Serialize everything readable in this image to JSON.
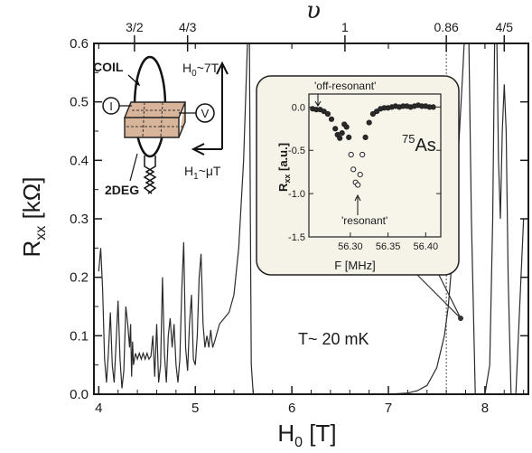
{
  "chart_data": {
    "type": "line",
    "xlabel": "H",
    "xlabel_sub": "0",
    "xlabel_unit": " [T]",
    "ylabel": "R",
    "ylabel_sub": "xx",
    "ylabel_unit": " [kΩ]",
    "xlim": [
      3.95,
      8.45
    ],
    "ylim": [
      0,
      0.6
    ],
    "x_ticks": [
      "4",
      "5",
      "6",
      "7",
      "8"
    ],
    "y_ticks": [
      "0.0",
      "0.1",
      "0.2",
      "0.3",
      "0.4",
      "0.5",
      "0.6"
    ],
    "top_axis": {
      "label": "υ",
      "ticks": [
        {
          "label": "3/2",
          "x": 4.37
        },
        {
          "label": "4/3",
          "x": 4.92
        },
        {
          "label": "1",
          "x": 6.55
        },
        {
          "label": "0.86",
          "x": 7.6
        },
        {
          "label": "4/5",
          "x": 8.2
        }
      ]
    },
    "series": [
      {
        "values": [
          [
            4.0,
            0.21
          ],
          [
            4.02,
            0.25
          ],
          [
            4.04,
            0.18
          ],
          [
            4.06,
            0.06
          ],
          [
            4.08,
            0.02
          ],
          [
            4.1,
            0.07
          ],
          [
            4.12,
            0.14
          ],
          [
            4.14,
            0.05
          ],
          [
            4.16,
            0.02
          ],
          [
            4.18,
            0.09
          ],
          [
            4.2,
            0.16
          ],
          [
            4.22,
            0.06
          ],
          [
            4.24,
            0.01
          ],
          [
            4.26,
            0.04
          ],
          [
            4.28,
            0.15
          ],
          [
            4.3,
            0.12
          ],
          [
            4.32,
            0.08
          ],
          [
            4.33,
            0.12
          ],
          [
            4.34,
            0.03
          ],
          [
            4.35,
            0.09
          ],
          [
            4.36,
            0.05
          ],
          [
            4.38,
            0.07
          ],
          [
            4.4,
            0.06
          ],
          [
            4.42,
            0.07
          ],
          [
            4.44,
            0.06
          ],
          [
            4.46,
            0.07
          ],
          [
            4.48,
            0.06
          ],
          [
            4.5,
            0.07
          ],
          [
            4.52,
            0.06
          ],
          [
            4.54,
            0.065
          ],
          [
            4.56,
            0.1
          ],
          [
            4.58,
            0.03
          ],
          [
            4.6,
            0.12
          ],
          [
            4.62,
            0.02
          ],
          [
            4.64,
            0.05
          ],
          [
            4.66,
            0.2
          ],
          [
            4.68,
            0.07
          ],
          [
            4.7,
            0.02
          ],
          [
            4.72,
            0.1
          ],
          [
            4.74,
            0.13
          ],
          [
            4.76,
            0.08
          ],
          [
            4.78,
            0.12
          ],
          [
            4.8,
            0.05
          ],
          [
            4.82,
            0.02
          ],
          [
            4.84,
            0.06
          ],
          [
            4.86,
            0.18
          ],
          [
            4.88,
            0.26
          ],
          [
            4.9,
            0.08
          ],
          [
            4.92,
            0.04
          ],
          [
            4.94,
            0.12
          ],
          [
            4.96,
            0.17
          ],
          [
            4.98,
            0.06
          ],
          [
            5.0,
            0.05
          ],
          [
            5.02,
            0.1
          ],
          [
            5.04,
            0.2
          ],
          [
            5.06,
            0.24
          ],
          [
            5.08,
            0.12
          ],
          [
            5.1,
            0.08
          ],
          [
            5.12,
            0.1
          ],
          [
            5.14,
            0.08
          ],
          [
            5.16,
            0.11
          ],
          [
            5.18,
            0.08
          ],
          [
            5.2,
            0.09
          ],
          [
            5.25,
            0.12
          ],
          [
            5.3,
            0.13
          ],
          [
            5.35,
            0.14
          ],
          [
            5.4,
            0.17
          ],
          [
            5.45,
            0.25
          ],
          [
            5.5,
            0.4
          ],
          [
            5.53,
            0.55
          ],
          [
            5.55,
            0.65
          ],
          [
            5.56,
            0.62
          ],
          [
            5.57,
            0.3
          ],
          [
            5.58,
            0.05
          ],
          [
            5.6,
            0.0
          ],
          [
            6.0,
            0.0
          ],
          [
            6.5,
            0.0
          ],
          [
            7.0,
            0.0
          ],
          [
            7.2,
            0.002
          ],
          [
            7.3,
            0.006
          ],
          [
            7.4,
            0.015
          ],
          [
            7.5,
            0.045
          ],
          [
            7.58,
            0.1
          ],
          [
            7.62,
            0.15
          ],
          [
            7.67,
            0.25
          ],
          [
            7.72,
            0.4
          ],
          [
            7.77,
            0.55
          ],
          [
            7.8,
            0.65
          ],
          [
            7.83,
            0.65
          ],
          [
            7.86,
            0.3
          ],
          [
            7.9,
            0.0
          ],
          [
            8.0,
            0.0
          ],
          [
            8.05,
            0.05
          ],
          [
            8.08,
            0.3
          ],
          [
            8.1,
            0.6
          ],
          [
            8.12,
            0.65
          ],
          [
            8.14,
            0.4
          ],
          [
            8.16,
            0.3
          ],
          [
            8.18,
            0.45
          ],
          [
            8.2,
            0.53
          ],
          [
            8.22,
            0.45
          ],
          [
            8.24,
            0.2
          ],
          [
            8.27,
            0.0
          ],
          [
            8.32,
            0.0
          ],
          [
            8.36,
            0.15
          ],
          [
            8.4,
            0.3
          ]
        ]
      }
    ],
    "annotations": {
      "temperature": "T~ 20 mK",
      "coil": "COIL",
      "two_deg": "2DEG",
      "current": "I",
      "voltage": "V",
      "h0": "H",
      "h0_sub": "0",
      "h0_value": "~7T",
      "h1": "H",
      "h1_sub": "1",
      "h1_value": "~μT"
    },
    "inset": {
      "type": "scatter",
      "xlabel": "F [MHz]",
      "ylabel": "R",
      "ylabel_sub": "xx",
      "ylabel_unit": " [a.u.]",
      "xlim": [
        56.245,
        56.42
      ],
      "ylim": [
        -1.5,
        0.15
      ],
      "x_ticks": [
        "56.30",
        "56.35",
        "56.40"
      ],
      "x_tick_values": [
        56.3,
        56.35,
        56.4
      ],
      "y_ticks": [
        "0.0",
        "-0.5",
        "-1.0",
        "-1.5"
      ],
      "y_tick_values": [
        0.0,
        -0.5,
        -1.0,
        -1.5
      ],
      "isotope_mass": "75",
      "isotope_symbol": "As",
      "label_off": "'off-resonant'",
      "label_res": "'resonant'",
      "points": [
        [
          56.25,
          -0.02
        ],
        [
          56.255,
          -0.03
        ],
        [
          56.26,
          -0.03
        ],
        [
          56.265,
          -0.05
        ],
        [
          56.27,
          -0.08
        ],
        [
          56.275,
          -0.14
        ],
        [
          56.28,
          -0.25
        ],
        [
          56.283,
          -0.32
        ],
        [
          56.286,
          -0.36
        ],
        [
          56.289,
          -0.3
        ],
        [
          56.292,
          -0.2
        ],
        [
          56.295,
          -0.23
        ],
        [
          56.298,
          -0.35
        ],
        [
          56.301,
          -0.55
        ],
        [
          56.304,
          -0.72
        ],
        [
          56.307,
          -0.87
        ],
        [
          56.31,
          -0.9
        ],
        [
          56.313,
          -0.78
        ],
        [
          56.316,
          -0.55
        ],
        [
          56.32,
          -0.35
        ],
        [
          56.325,
          -0.18
        ],
        [
          56.33,
          -0.08
        ],
        [
          56.335,
          -0.05
        ],
        [
          56.34,
          -0.02
        ],
        [
          56.345,
          -0.01
        ],
        [
          56.35,
          -0.01
        ],
        [
          56.355,
          0.0
        ],
        [
          56.36,
          0.01
        ],
        [
          56.365,
          0.0
        ],
        [
          56.37,
          0.01
        ],
        [
          56.375,
          0.01
        ],
        [
          56.38,
          0.0
        ],
        [
          56.385,
          0.01
        ],
        [
          56.39,
          0.02
        ],
        [
          56.395,
          0.01
        ],
        [
          56.4,
          0.01
        ],
        [
          56.405,
          0.0
        ],
        [
          56.41,
          0.0
        ]
      ]
    }
  }
}
